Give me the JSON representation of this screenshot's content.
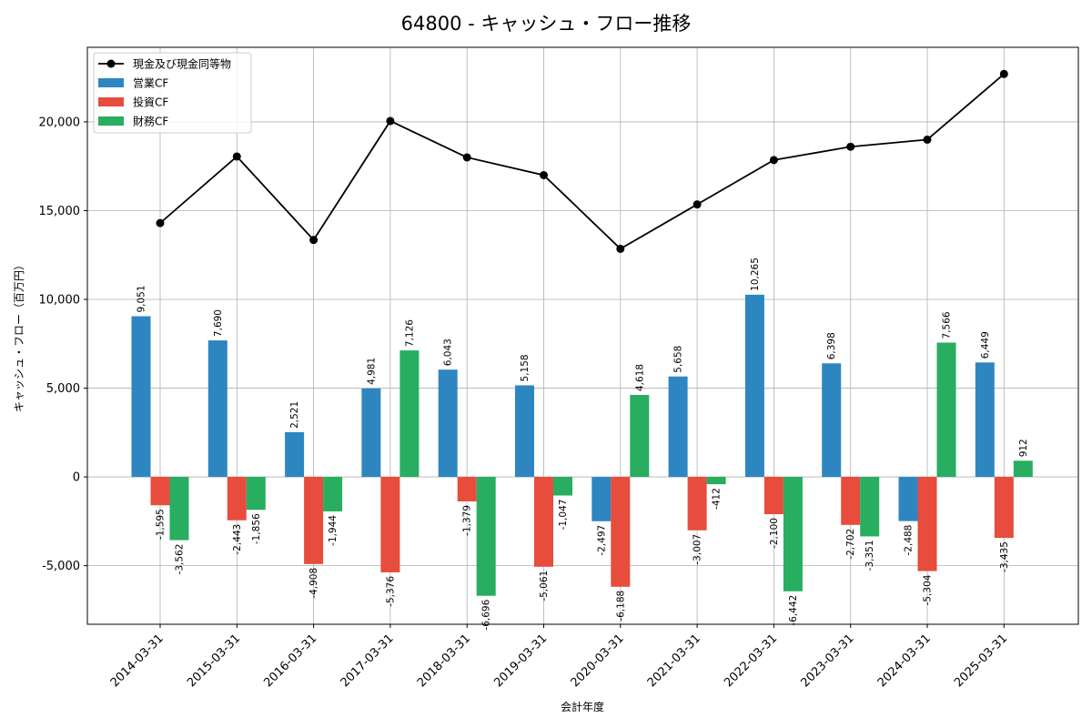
{
  "chart_data": {
    "type": "bar",
    "title": "64800 - キャッシュ・フロー推移",
    "xlabel": "会計年度",
    "ylabel": "キャッシュ・フロー（百万円）",
    "ylim": [
      -8300,
      24200
    ],
    "yticks": [
      -5000,
      0,
      5000,
      10000,
      15000,
      20000
    ],
    "ytick_labels": [
      "-5,000",
      "0",
      "5,000",
      "10,000",
      "15,000",
      "20,000"
    ],
    "grid": true,
    "legend_position": "top-left",
    "categories": [
      "2014-03-31",
      "2015-03-31",
      "2016-03-31",
      "2017-03-31",
      "2018-03-31",
      "2019-03-31",
      "2020-03-31",
      "2021-03-31",
      "2022-03-31",
      "2023-03-31",
      "2024-03-31",
      "2025-03-31"
    ],
    "series": [
      {
        "name": "営業CF",
        "kind": "bar",
        "color": "#2e86c1",
        "values": [
          9051,
          7690,
          2521,
          4981,
          6043,
          5158,
          -2497,
          5658,
          10265,
          6398,
          -2488,
          6449
        ],
        "labels": [
          "9,051",
          "7,690",
          "2,521",
          "4,981",
          "6,043",
          "5,158",
          "-2,497",
          "5,658",
          "10,265",
          "6,398",
          "-2,488",
          "6,449"
        ]
      },
      {
        "name": "投資CF",
        "kind": "bar",
        "color": "#e74c3c",
        "values": [
          -1595,
          -2443,
          -4908,
          -5376,
          -1379,
          -5061,
          -6188,
          -3007,
          -2100,
          -2702,
          -5304,
          -3435
        ],
        "labels": [
          "-1,595",
          "-2,443",
          "-4,908",
          "-5,376",
          "-1,379",
          "-5,061",
          "-6,188",
          "-3,007",
          "-2,100",
          "-2,702",
          "-5,304",
          "-3,435"
        ]
      },
      {
        "name": "財務CF",
        "kind": "bar",
        "color": "#27ae60",
        "values": [
          -3562,
          -1856,
          -1944,
          7126,
          -6696,
          -1047,
          4618,
          -412,
          -6442,
          -3351,
          7566,
          912
        ],
        "labels": [
          "-3,562",
          "-1,856",
          "-1,944",
          "7,126",
          "-6,696",
          "-1,047",
          "4,618",
          "-412",
          "-6,442",
          "-3,351",
          "7,566",
          "912"
        ]
      },
      {
        "name": "現金及び現金同等物",
        "kind": "line",
        "color": "#000000",
        "values": [
          14300,
          18050,
          13350,
          20050,
          18000,
          17000,
          12850,
          15350,
          17850,
          18600,
          19000,
          22700
        ]
      }
    ],
    "legend_order": [
      "現金及び現金同等物",
      "営業CF",
      "投資CF",
      "財務CF"
    ]
  }
}
